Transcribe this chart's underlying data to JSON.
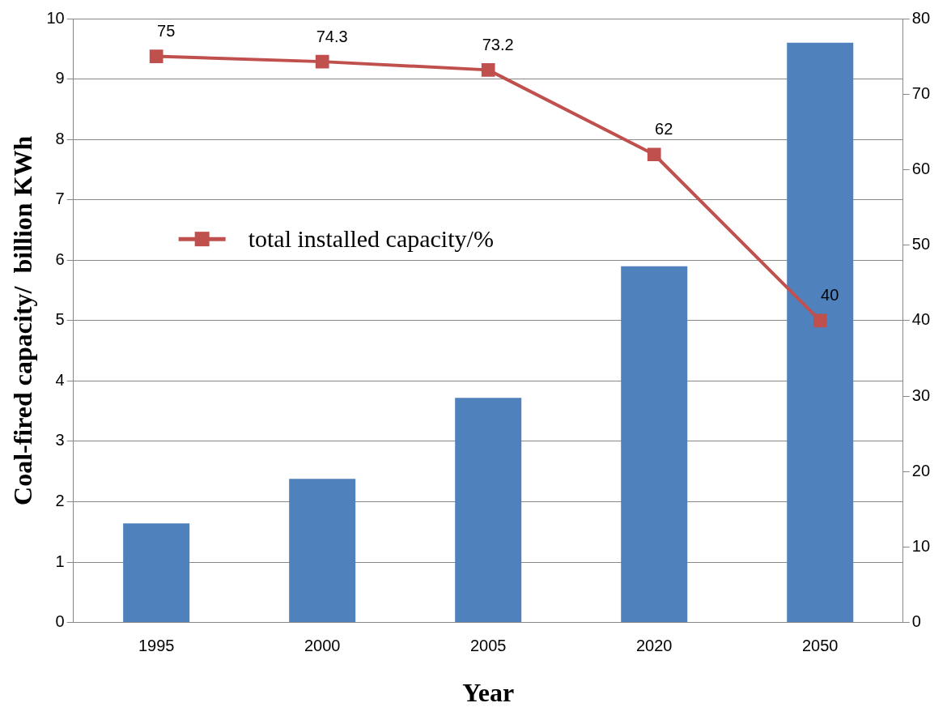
{
  "chart_data": {
    "type": "bar",
    "xlabel": "Year",
    "ylabel": "Coal-fired capacity/  billion KWh",
    "categories": [
      "1995",
      "2000",
      "2005",
      "2020",
      "2050"
    ],
    "series": [
      {
        "color": "#4f81bd",
        "values": [
          1.64,
          2.38,
          3.72,
          5.9,
          9.6
        ]
      },
      {
        "type": "line",
        "name": "total installed capacity/%",
        "color": "#c0504d",
        "axis": "y2",
        "marker": "square",
        "values": [
          75,
          74.3,
          73.2,
          62,
          40
        ],
        "value_labels": [
          "75",
          "74.3",
          "73.2",
          "62",
          "40"
        ]
      }
    ],
    "ylim": [
      0,
      10
    ],
    "yticks": [
      0,
      1,
      2,
      3,
      4,
      5,
      6,
      7,
      8,
      9,
      10
    ],
    "y2lim": [
      0,
      80
    ],
    "y2ticks": [
      0,
      10,
      20,
      30,
      40,
      50,
      60,
      70,
      80
    ],
    "grid": "y",
    "legend": "left"
  }
}
